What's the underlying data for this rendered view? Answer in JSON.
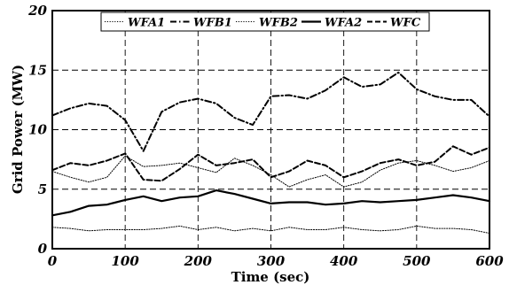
{
  "chart_data": {
    "type": "line",
    "xlabel": "Time (sec)",
    "ylabel": "Grid Power (MW)",
    "xlim": [
      0,
      600
    ],
    "ylim": [
      0,
      20
    ],
    "xticks": [
      "0",
      "100",
      "200",
      "300",
      "400",
      "500",
      "600"
    ],
    "yticks": [
      "0",
      "5",
      "10",
      "15",
      "20"
    ],
    "grid": true,
    "legend": "top",
    "x": [
      0,
      25,
      50,
      75,
      100,
      125,
      150,
      175,
      200,
      225,
      250,
      275,
      300,
      325,
      350,
      375,
      400,
      425,
      450,
      475,
      500,
      525,
      550,
      575,
      600
    ],
    "series": [
      {
        "name": "WFA1",
        "style": "dotted",
        "width": 1,
        "values": [
          6.5,
          6.0,
          5.6,
          6.0,
          7.8,
          6.9,
          7.0,
          7.2,
          6.8,
          6.4,
          7.6,
          7.0,
          6.2,
          5.2,
          5.8,
          6.2,
          5.2,
          5.6,
          6.6,
          7.2,
          7.4,
          7.0,
          6.5,
          6.8,
          7.4
        ]
      },
      {
        "name": "WFB1",
        "style": "dashdot",
        "width": 2,
        "values": [
          11.2,
          11.8,
          12.2,
          12.0,
          10.8,
          8.2,
          11.5,
          12.3,
          12.6,
          12.2,
          11.0,
          10.4,
          12.8,
          12.9,
          12.6,
          13.3,
          14.4,
          13.6,
          13.8,
          14.8,
          13.4,
          12.8,
          12.5,
          12.5,
          11.1
        ]
      },
      {
        "name": "WFB2",
        "style": "dotted",
        "width": 1,
        "values": [
          1.8,
          1.7,
          1.5,
          1.6,
          1.6,
          1.6,
          1.7,
          1.9,
          1.6,
          1.8,
          1.5,
          1.7,
          1.5,
          1.8,
          1.6,
          1.6,
          1.8,
          1.6,
          1.5,
          1.6,
          1.9,
          1.7,
          1.7,
          1.6,
          1.3
        ]
      },
      {
        "name": "WFA2",
        "style": "solid",
        "width": 2.2,
        "values": [
          2.8,
          3.1,
          3.6,
          3.7,
          4.1,
          4.4,
          4.0,
          4.3,
          4.4,
          4.9,
          4.6,
          4.2,
          3.8,
          3.9,
          3.9,
          3.7,
          3.8,
          4.0,
          3.9,
          4.0,
          4.1,
          4.3,
          4.5,
          4.3,
          4.0
        ]
      },
      {
        "name": "WFC",
        "style": "dashed",
        "width": 2,
        "values": [
          6.6,
          7.2,
          7.0,
          7.4,
          8.0,
          5.8,
          5.7,
          6.7,
          7.9,
          7.0,
          7.2,
          7.5,
          6.0,
          6.5,
          7.4,
          7.0,
          6.0,
          6.5,
          7.2,
          7.5,
          7.0,
          7.3,
          8.6,
          7.9,
          8.5
        ]
      }
    ]
  }
}
